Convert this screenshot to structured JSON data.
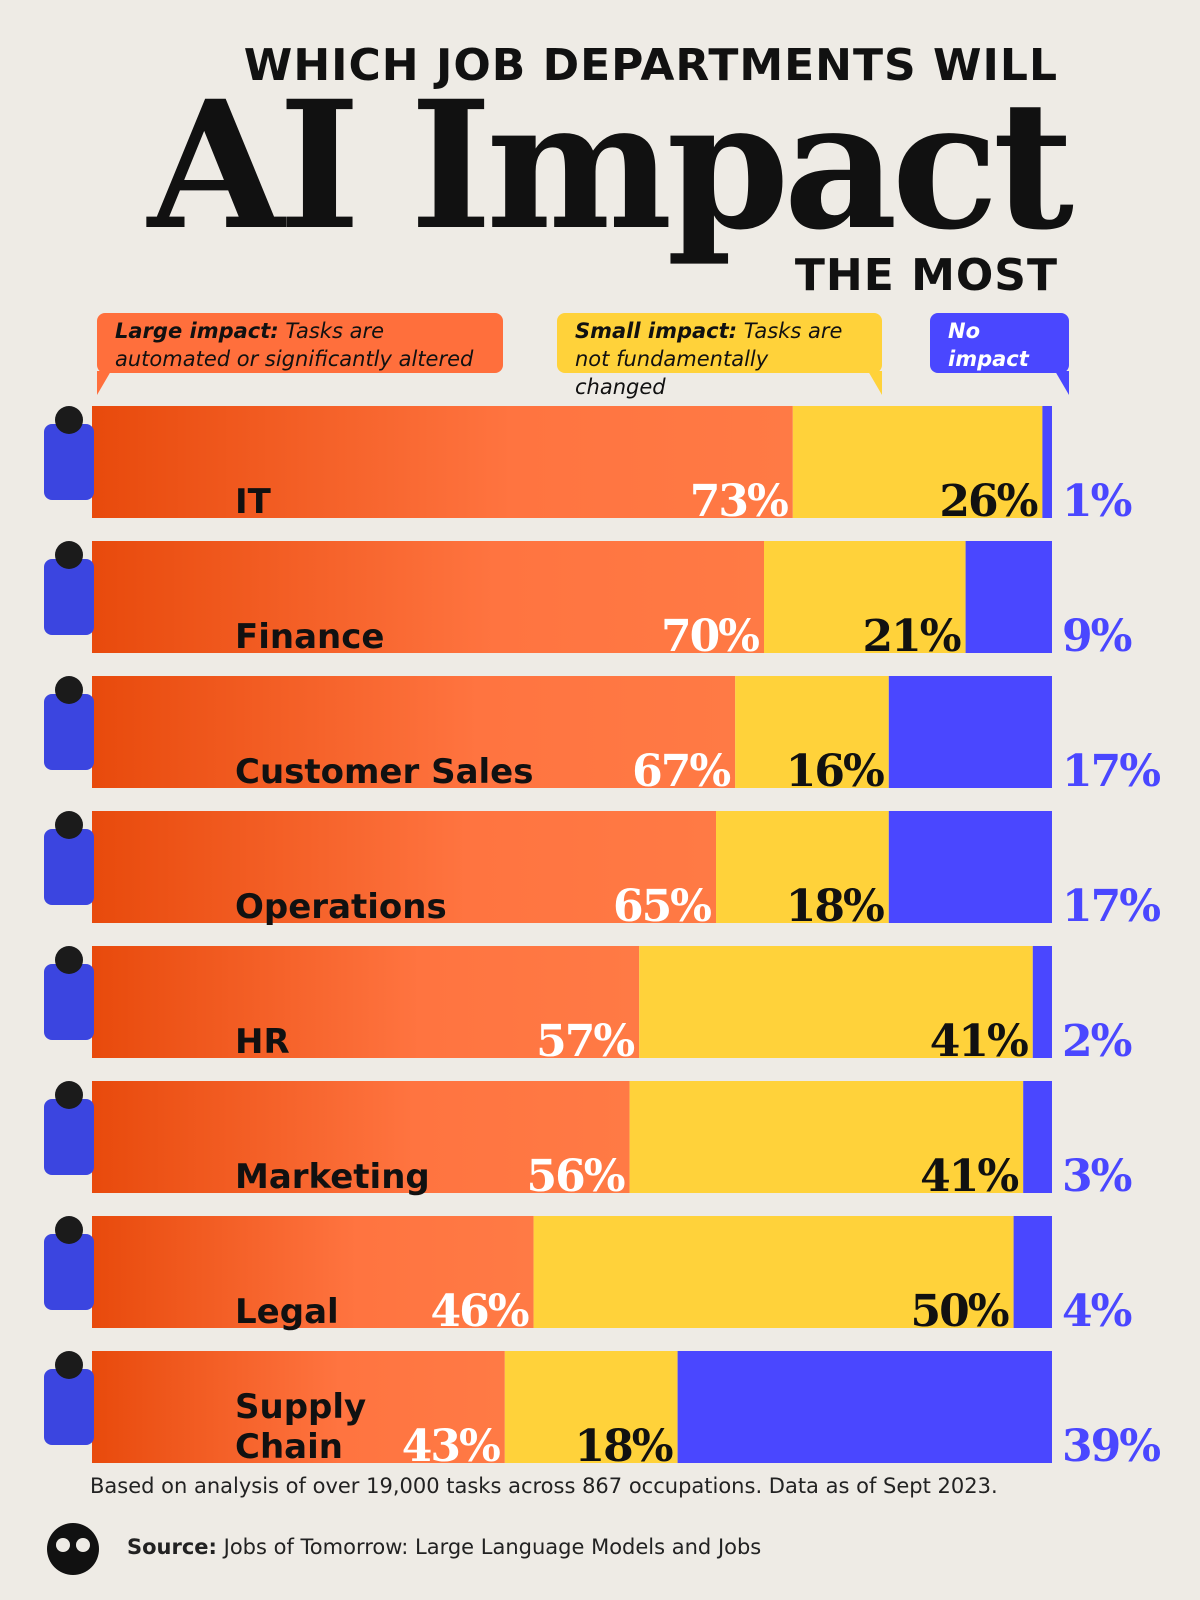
{
  "chart_data": {
    "type": "bar",
    "orientation": "horizontal",
    "stacked": true,
    "title_lines": [
      "WHICH JOB DEPARTMENTS WILL",
      "AI Impact",
      "THE MOST"
    ],
    "categories": [
      "IT",
      "Finance",
      "Customer Sales",
      "Operations",
      "HR",
      "Marketing",
      "Legal",
      "Supply Chain"
    ],
    "series": [
      {
        "name": "Large impact:",
        "description": "Tasks are automated or significantly altered",
        "color": "#ff6f3c",
        "values": [
          73,
          70,
          67,
          65,
          57,
          56,
          46,
          43
        ],
        "value_labels": [
          "73%",
          "70%",
          "67%",
          "65%",
          "57%",
          "56%",
          "46%",
          "43%"
        ]
      },
      {
        "name": "Small impact:",
        "description": "Tasks are not fundamentally changed",
        "color": "#ffd23a",
        "values": [
          26,
          21,
          16,
          18,
          41,
          41,
          50,
          18
        ],
        "value_labels": [
          "26%",
          "21%",
          "16%",
          "18%",
          "41%",
          "41%",
          "50%",
          "18%"
        ]
      },
      {
        "name": "No impact",
        "color": "#4a47ff",
        "values": [
          1,
          9,
          17,
          17,
          2,
          3,
          4,
          39
        ],
        "value_labels": [
          "1%",
          "9%",
          "17%",
          "17%",
          "2%",
          "3%",
          "4%",
          "39%"
        ]
      }
    ],
    "footnote": "Based on analysis of over 19,000 tasks across 867 occupations. Data as of Sept 2023.",
    "source_label": "Source:",
    "source": "Jobs of Tomorrow: Large Language Models and Jobs"
  }
}
